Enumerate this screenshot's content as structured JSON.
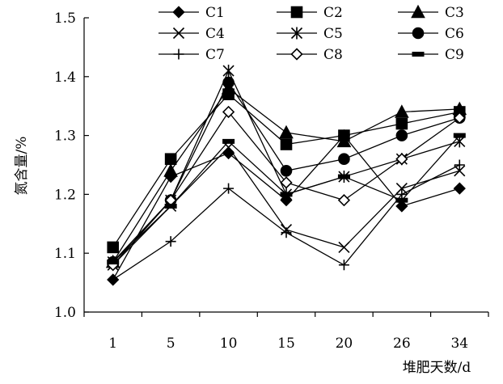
{
  "chart_data": {
    "type": "line",
    "categories": [
      "1",
      "5",
      "10",
      "15",
      "20",
      "26",
      "34"
    ],
    "ylim": [
      1.0,
      1.5
    ],
    "yticks": [
      "1.0",
      "1.1",
      "1.2",
      "1.3",
      "1.4",
      "1.5"
    ],
    "ylabel": "氮含量/%",
    "xlabel": "堆肥天数/d",
    "grid": false,
    "legend_position": "top",
    "series": [
      {
        "name": "C1",
        "marker": "diamond",
        "values": [
          1.055,
          1.23,
          1.27,
          1.19,
          1.3,
          1.18,
          1.21
        ]
      },
      {
        "name": "C2",
        "marker": "square",
        "values": [
          1.11,
          1.26,
          1.37,
          1.285,
          1.3,
          1.32,
          1.34
        ]
      },
      {
        "name": "C3",
        "marker": "triangle",
        "values": [
          1.085,
          1.24,
          1.38,
          1.305,
          1.29,
          1.34,
          1.345
        ]
      },
      {
        "name": "C4",
        "marker": "x",
        "values": [
          1.08,
          1.18,
          1.28,
          1.14,
          1.11,
          1.21,
          1.24
        ]
      },
      {
        "name": "C5",
        "marker": "asterisk",
        "values": [
          1.085,
          1.19,
          1.41,
          1.2,
          1.23,
          1.26,
          1.29
        ]
      },
      {
        "name": "C6",
        "marker": "circle",
        "values": [
          1.085,
          1.19,
          1.39,
          1.24,
          1.26,
          1.3,
          1.33
        ]
      },
      {
        "name": "C7",
        "marker": "plus",
        "values": [
          1.055,
          1.12,
          1.21,
          1.135,
          1.08,
          1.2,
          1.25
        ]
      },
      {
        "name": "C8",
        "marker": "open-diamond",
        "values": [
          1.08,
          1.19,
          1.34,
          1.22,
          1.19,
          1.26,
          1.33
        ]
      },
      {
        "name": "C9",
        "marker": "dash",
        "values": [
          1.085,
          1.18,
          1.29,
          1.2,
          1.23,
          1.19,
          1.3
        ]
      }
    ]
  }
}
